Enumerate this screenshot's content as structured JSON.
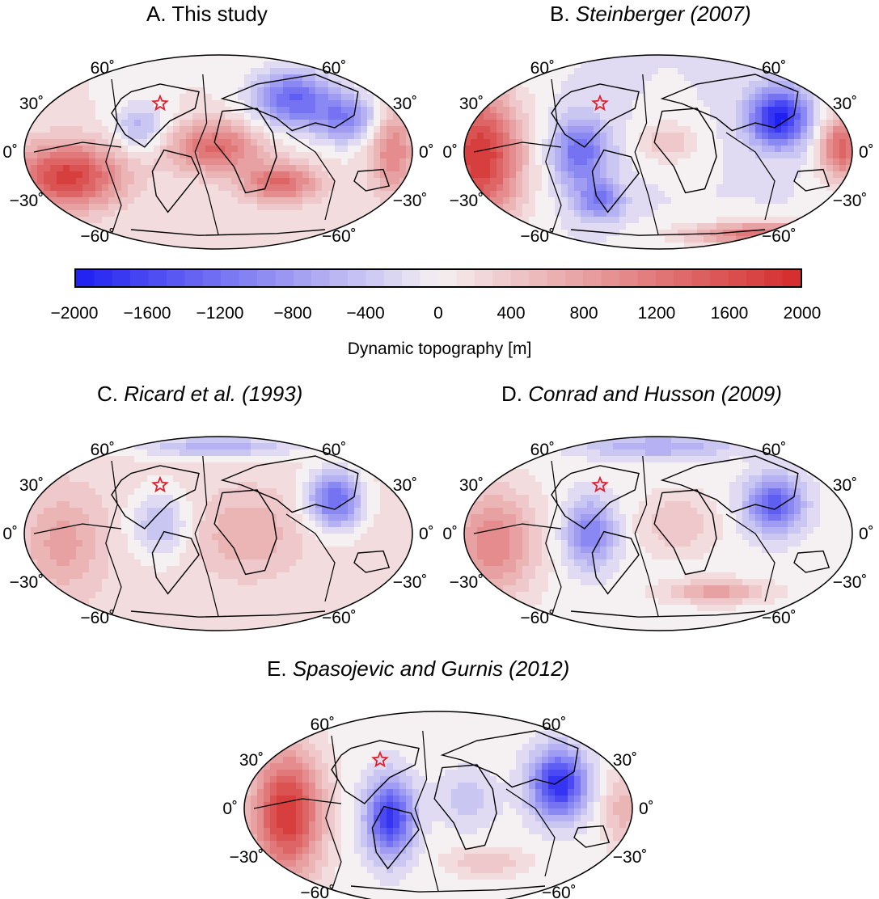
{
  "colorbar": {
    "label": "Dynamic topography [m]",
    "min": -2000,
    "max": 2000,
    "ticks": [
      "−2000",
      "−1600",
      "−1200",
      "−800",
      "−400",
      "0",
      "400",
      "800",
      "1200",
      "1600",
      "2000"
    ],
    "colors": {
      "low": "#1f1ff2",
      "mid": "#f5f0f2",
      "high": "#d42a2a"
    }
  },
  "lat_labels": [
    "60˚",
    "30˚",
    "0˚",
    "−30˚",
    "−60˚"
  ],
  "panels": [
    {
      "id": "A",
      "prefix": "A.",
      "name": "This study",
      "italic": false
    },
    {
      "id": "B",
      "prefix": "B.",
      "name": "Steinberger (2007)",
      "italic": true
    },
    {
      "id": "C",
      "prefix": "C.",
      "name": "Ricard et al. (1993)",
      "italic": true
    },
    {
      "id": "D",
      "prefix": "D.",
      "name": "Conrad and Husson (2009)",
      "italic": true
    },
    {
      "id": "E",
      "prefix": "E.",
      "name": "Spasojevic and Gurnis (2012)",
      "italic": true
    }
  ],
  "marker": {
    "icon": "star-icon",
    "color": "#e0202a"
  }
}
